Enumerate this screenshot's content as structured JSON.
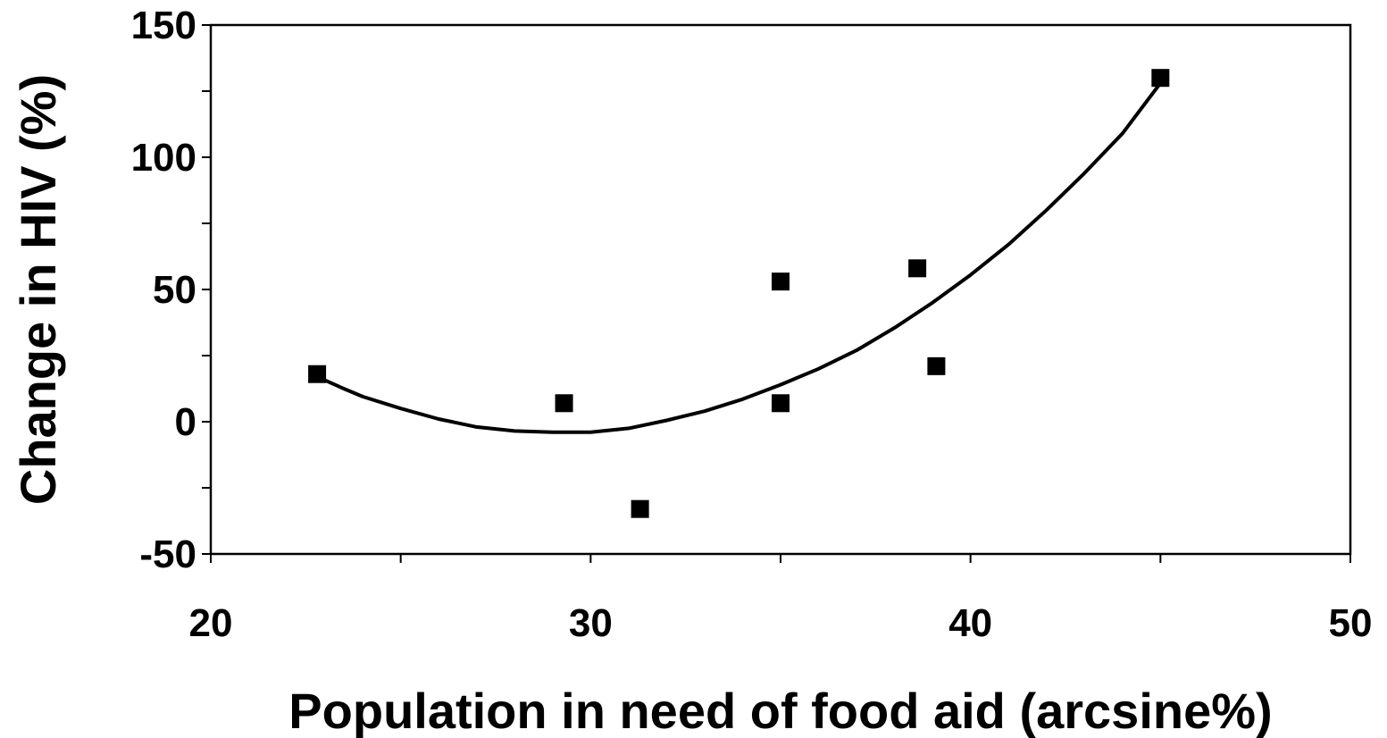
{
  "chart_data": {
    "type": "scatter",
    "title": "",
    "xlabel": "Population in need of food aid (arcsine%)",
    "ylabel": "Change in HIV (%)",
    "xlim": [
      20,
      50
    ],
    "ylim": [
      -50,
      150
    ],
    "x_ticks": [
      20,
      30,
      40,
      50
    ],
    "y_ticks": [
      -50,
      0,
      50,
      100,
      150
    ],
    "x_tick_labels": [
      "20",
      "30",
      "40",
      "50"
    ],
    "y_tick_labels": [
      "-50",
      "0",
      "50",
      "100",
      "150"
    ],
    "grid": false,
    "legend": false,
    "series": [
      {
        "type": "scatter",
        "marker": "square",
        "color": "#000000",
        "points": [
          {
            "x": 22.8,
            "y": 18
          },
          {
            "x": 29.3,
            "y": 7
          },
          {
            "x": 31.3,
            "y": -33
          },
          {
            "x": 35.0,
            "y": 53
          },
          {
            "x": 35.0,
            "y": 7
          },
          {
            "x": 38.6,
            "y": 58
          },
          {
            "x": 39.1,
            "y": 21
          },
          {
            "x": 45.0,
            "y": 130
          }
        ]
      },
      {
        "type": "line",
        "fit": "polynomial-2",
        "color": "#000000",
        "points": [
          {
            "x": 22.8,
            "y": 17
          },
          {
            "x": 23.5,
            "y": 12.5
          },
          {
            "x": 24.0,
            "y": 9.5
          },
          {
            "x": 25.0,
            "y": 5
          },
          {
            "x": 26.0,
            "y": 1
          },
          {
            "x": 27.0,
            "y": -2
          },
          {
            "x": 28.0,
            "y": -3.5
          },
          {
            "x": 29.0,
            "y": -4
          },
          {
            "x": 30.0,
            "y": -4
          },
          {
            "x": 31.0,
            "y": -2.5
          },
          {
            "x": 32.0,
            "y": 0.5
          },
          {
            "x": 33.0,
            "y": 4
          },
          {
            "x": 34.0,
            "y": 8.5
          },
          {
            "x": 35.0,
            "y": 14
          },
          {
            "x": 36.0,
            "y": 20
          },
          {
            "x": 37.0,
            "y": 27
          },
          {
            "x": 38.0,
            "y": 35.5
          },
          {
            "x": 39.0,
            "y": 45
          },
          {
            "x": 40.0,
            "y": 55.5
          },
          {
            "x": 41.0,
            "y": 67
          },
          {
            "x": 42.0,
            "y": 80
          },
          {
            "x": 43.0,
            "y": 94
          },
          {
            "x": 44.0,
            "y": 109
          },
          {
            "x": 45.0,
            "y": 128
          }
        ]
      }
    ]
  }
}
